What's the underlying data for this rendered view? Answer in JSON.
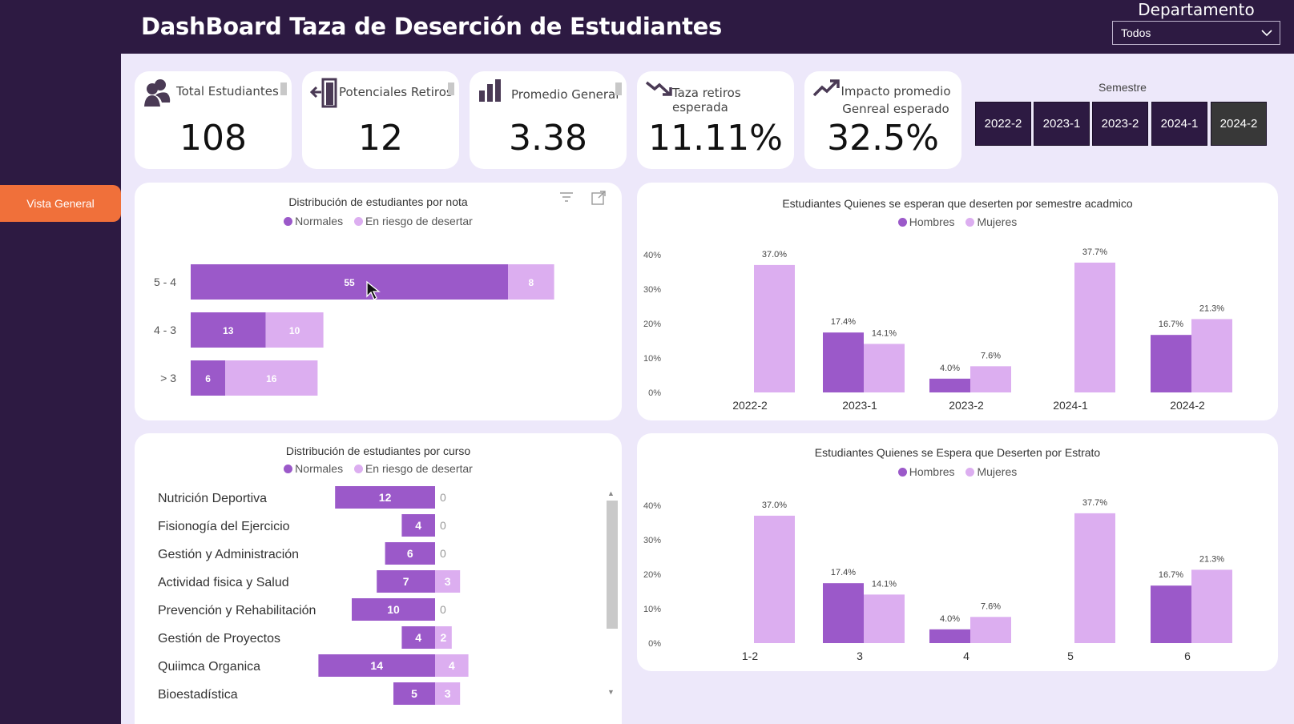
{
  "header": {
    "title": "DashBoard Taza de Deserción de Estudiantes"
  },
  "department": {
    "label": "Departamento",
    "value": "Todos"
  },
  "nav": {
    "vista_general": "Vista General"
  },
  "kpis": [
    {
      "label": "Total Estudiantes",
      "value": "108",
      "icon": "people-icon"
    },
    {
      "label": "Potenciales Retiros",
      "value": "12",
      "icon": "exit-icon"
    },
    {
      "label": "Promedio General",
      "value": "3.38",
      "icon": "bar-chart-icon"
    },
    {
      "label": "Taza retiros esperada",
      "value": "11.11%",
      "icon": "trend-down-icon"
    },
    {
      "label": "Impacto promedio Genreal esperado",
      "value": "32.5%",
      "icon": "trend-up-icon"
    }
  ],
  "semester": {
    "title": "Semestre",
    "options": [
      "2022-2",
      "2023-1",
      "2023-2",
      "2024-1",
      "2024-2"
    ],
    "selected": "2024-2"
  },
  "colors": {
    "primary": "#9b59c9",
    "secondary": "#dcaef0",
    "panel": "#ffffff",
    "background": "#ede8fa",
    "frame": "#2d1a42",
    "accent": "#f0703a"
  },
  "chart_data": [
    {
      "type": "bar",
      "orientation": "horizontal-stacked",
      "title": "Distribución de estudiantes por nota",
      "categories": [
        "5 - 4",
        "4 - 3",
        "> 3"
      ],
      "series": [
        {
          "name": "Normales",
          "values": [
            55,
            13,
            6
          ]
        },
        {
          "name": "En riesgo de desertar",
          "values": [
            8,
            10,
            16
          ]
        }
      ]
    },
    {
      "type": "bar",
      "orientation": "vertical-grouped",
      "title": "Estudiantes Quienes se esperan que deserten por semestre acadmico",
      "categories": [
        "2022-2",
        "2023-1",
        "2023-2",
        "2024-1",
        "2024-2"
      ],
      "series": [
        {
          "name": "Hombres",
          "values": [
            null,
            17.4,
            4.0,
            null,
            16.7
          ]
        },
        {
          "name": "Mujeres",
          "values": [
            37.0,
            14.1,
            7.6,
            37.7,
            21.3
          ]
        }
      ],
      "yticks": [
        "0%",
        "10%",
        "20%",
        "30%",
        "40%"
      ],
      "ylim": [
        0,
        40
      ]
    },
    {
      "type": "bar",
      "orientation": "horizontal-diverging",
      "title": "Distribución de estudiantes por curso",
      "categories": [
        "Nutrición Deportiva",
        "Fisionogía del Ejercicio",
        "Gestión y Administración",
        "Actividad fisica y Salud",
        "Prevención y Rehabilitación",
        "Gestión de Proyectos",
        "Quiimca Organica",
        "Bioestadística"
      ],
      "series": [
        {
          "name": "Normales",
          "values": [
            12,
            4,
            6,
            7,
            10,
            4,
            14,
            5
          ]
        },
        {
          "name": "En riesgo de desertar",
          "values": [
            0,
            0,
            0,
            3,
            0,
            2,
            4,
            3
          ]
        }
      ]
    },
    {
      "type": "bar",
      "orientation": "vertical-grouped",
      "title": "Estudiantes Quienes se Espera que Deserten por Estrato",
      "categories": [
        "1-2",
        "3",
        "4",
        "5",
        "6"
      ],
      "series": [
        {
          "name": "Hombres",
          "values": [
            null,
            17.4,
            4.0,
            null,
            16.7
          ]
        },
        {
          "name": "Mujeres",
          "values": [
            37.0,
            14.1,
            7.6,
            37.7,
            21.3
          ]
        }
      ],
      "yticks": [
        "0%",
        "10%",
        "20%",
        "30%",
        "40%"
      ],
      "ylim": [
        0,
        40
      ]
    }
  ]
}
